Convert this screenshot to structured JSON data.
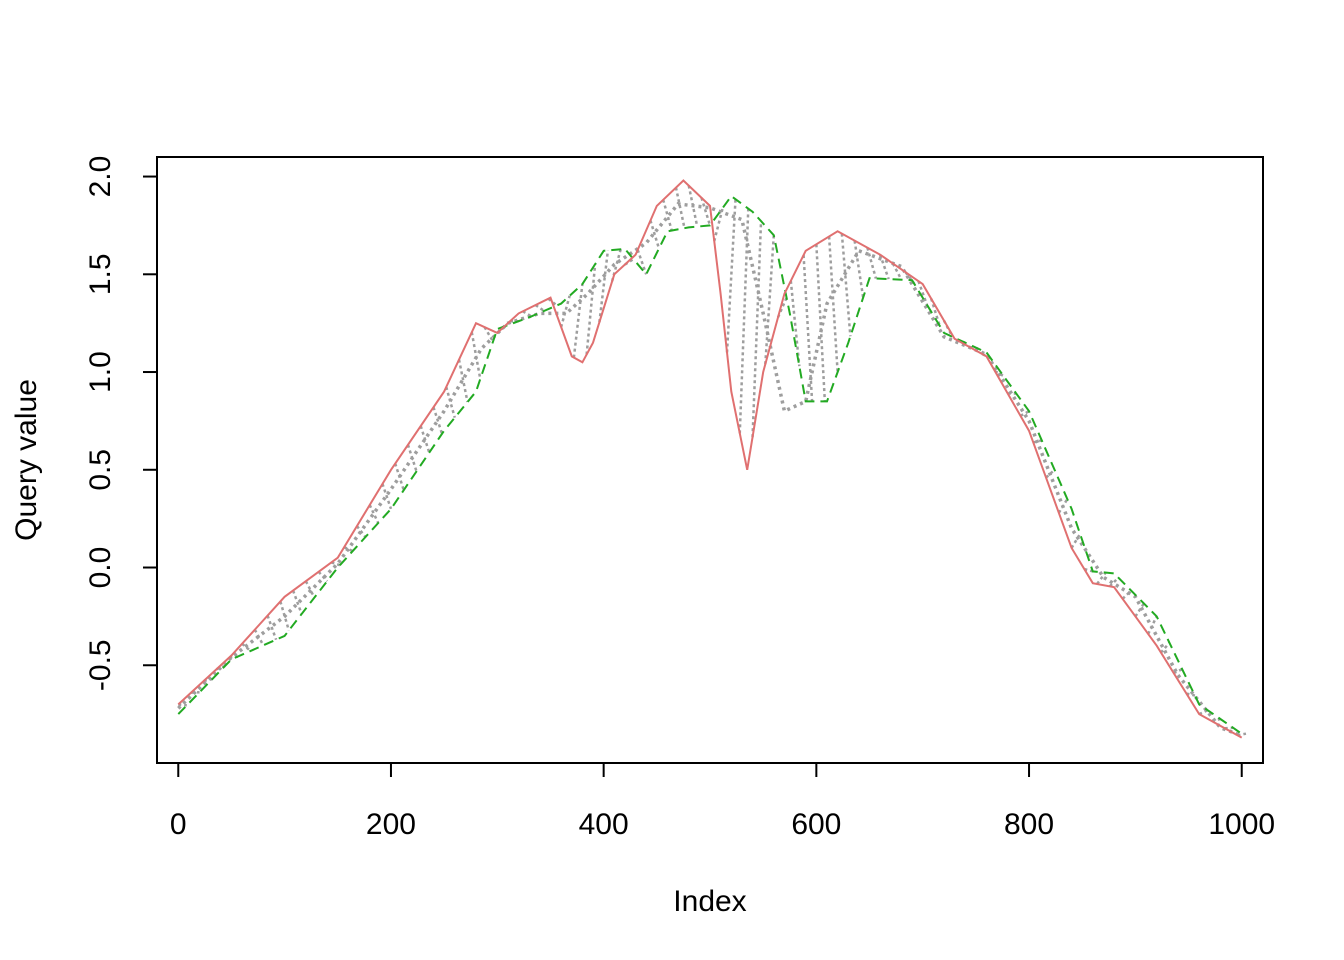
{
  "chart_data": {
    "type": "line",
    "title": "",
    "xlabel": "Index",
    "ylabel": "Query value",
    "xlim": [
      -20,
      1020
    ],
    "ylim": [
      -1.0,
      2.1
    ],
    "grid": false,
    "legend": "none",
    "x_ticks": [
      {
        "value": 0,
        "label": "0"
      },
      {
        "value": 200,
        "label": "200"
      },
      {
        "value": 400,
        "label": "400"
      },
      {
        "value": 600,
        "label": "600"
      },
      {
        "value": 800,
        "label": "800"
      },
      {
        "value": 1000,
        "label": "1000"
      }
    ],
    "y_ticks": [
      {
        "value": -0.5,
        "label": "-0.5"
      },
      {
        "value": 0.0,
        "label": "0.0"
      },
      {
        "value": 0.5,
        "label": "0.5"
      },
      {
        "value": 1.0,
        "label": "1.0"
      },
      {
        "value": 1.5,
        "label": "1.5"
      },
      {
        "value": 2.0,
        "label": "2.0"
      }
    ],
    "colors": {
      "query": "#e07070",
      "reference": "#22aa22",
      "alignment": "#9e9e9e"
    },
    "series": [
      {
        "style": "solid",
        "color": "#e07070",
        "points": [
          [
            0,
            -0.7
          ],
          [
            50,
            -0.45
          ],
          [
            100,
            -0.15
          ],
          [
            150,
            0.05
          ],
          [
            200,
            0.5
          ],
          [
            250,
            0.9
          ],
          [
            280,
            1.25
          ],
          [
            300,
            1.2
          ],
          [
            320,
            1.3
          ],
          [
            350,
            1.38
          ],
          [
            370,
            1.08
          ],
          [
            380,
            1.05
          ],
          [
            390,
            1.15
          ],
          [
            410,
            1.5
          ],
          [
            430,
            1.6
          ],
          [
            450,
            1.85
          ],
          [
            475,
            1.98
          ],
          [
            500,
            1.85
          ],
          [
            510,
            1.4
          ],
          [
            520,
            0.9
          ],
          [
            535,
            0.5
          ],
          [
            550,
            1.0
          ],
          [
            570,
            1.4
          ],
          [
            590,
            1.62
          ],
          [
            620,
            1.72
          ],
          [
            660,
            1.6
          ],
          [
            700,
            1.45
          ],
          [
            730,
            1.17
          ],
          [
            760,
            1.08
          ],
          [
            800,
            0.7
          ],
          [
            840,
            0.1
          ],
          [
            860,
            -0.08
          ],
          [
            880,
            -0.1
          ],
          [
            920,
            -0.4
          ],
          [
            960,
            -0.75
          ],
          [
            1000,
            -0.87
          ]
        ]
      },
      {
        "style": "dashed",
        "color": "#22aa22",
        "points": [
          [
            0,
            -0.75
          ],
          [
            50,
            -0.47
          ],
          [
            100,
            -0.35
          ],
          [
            150,
            0.0
          ],
          [
            200,
            0.3
          ],
          [
            250,
            0.7
          ],
          [
            280,
            0.9
          ],
          [
            300,
            1.22
          ],
          [
            330,
            1.28
          ],
          [
            360,
            1.35
          ],
          [
            380,
            1.45
          ],
          [
            400,
            1.62
          ],
          [
            420,
            1.63
          ],
          [
            440,
            1.5
          ],
          [
            460,
            1.72
          ],
          [
            480,
            1.74
          ],
          [
            500,
            1.75
          ],
          [
            520,
            1.9
          ],
          [
            540,
            1.82
          ],
          [
            560,
            1.7
          ],
          [
            575,
            1.3
          ],
          [
            590,
            0.85
          ],
          [
            610,
            0.85
          ],
          [
            630,
            1.15
          ],
          [
            650,
            1.48
          ],
          [
            690,
            1.47
          ],
          [
            720,
            1.2
          ],
          [
            760,
            1.1
          ],
          [
            800,
            0.8
          ],
          [
            840,
            0.3
          ],
          [
            860,
            -0.02
          ],
          [
            880,
            -0.03
          ],
          [
            920,
            -0.25
          ],
          [
            960,
            -0.7
          ],
          [
            1000,
            -0.85
          ]
        ]
      },
      {
        "style": "dotted",
        "color": "#9e9e9e",
        "points": [
          [
            0,
            -0.72
          ],
          [
            50,
            -0.46
          ],
          [
            100,
            -0.25
          ],
          [
            150,
            0.02
          ],
          [
            200,
            0.4
          ],
          [
            250,
            0.8
          ],
          [
            285,
            1.12
          ],
          [
            310,
            1.25
          ],
          [
            340,
            1.3
          ],
          [
            365,
            1.3
          ],
          [
            385,
            1.4
          ],
          [
            410,
            1.55
          ],
          [
            440,
            1.66
          ],
          [
            470,
            1.86
          ],
          [
            500,
            1.84
          ],
          [
            530,
            1.78
          ],
          [
            550,
            1.3
          ],
          [
            570,
            0.8
          ],
          [
            590,
            0.85
          ],
          [
            610,
            1.35
          ],
          [
            640,
            1.62
          ],
          [
            680,
            1.54
          ],
          [
            720,
            1.18
          ],
          [
            760,
            1.09
          ],
          [
            800,
            0.75
          ],
          [
            840,
            0.2
          ],
          [
            870,
            -0.05
          ],
          [
            900,
            -0.15
          ],
          [
            940,
            -0.55
          ],
          [
            980,
            -0.82
          ],
          [
            1000,
            -0.86
          ]
        ]
      }
    ]
  }
}
